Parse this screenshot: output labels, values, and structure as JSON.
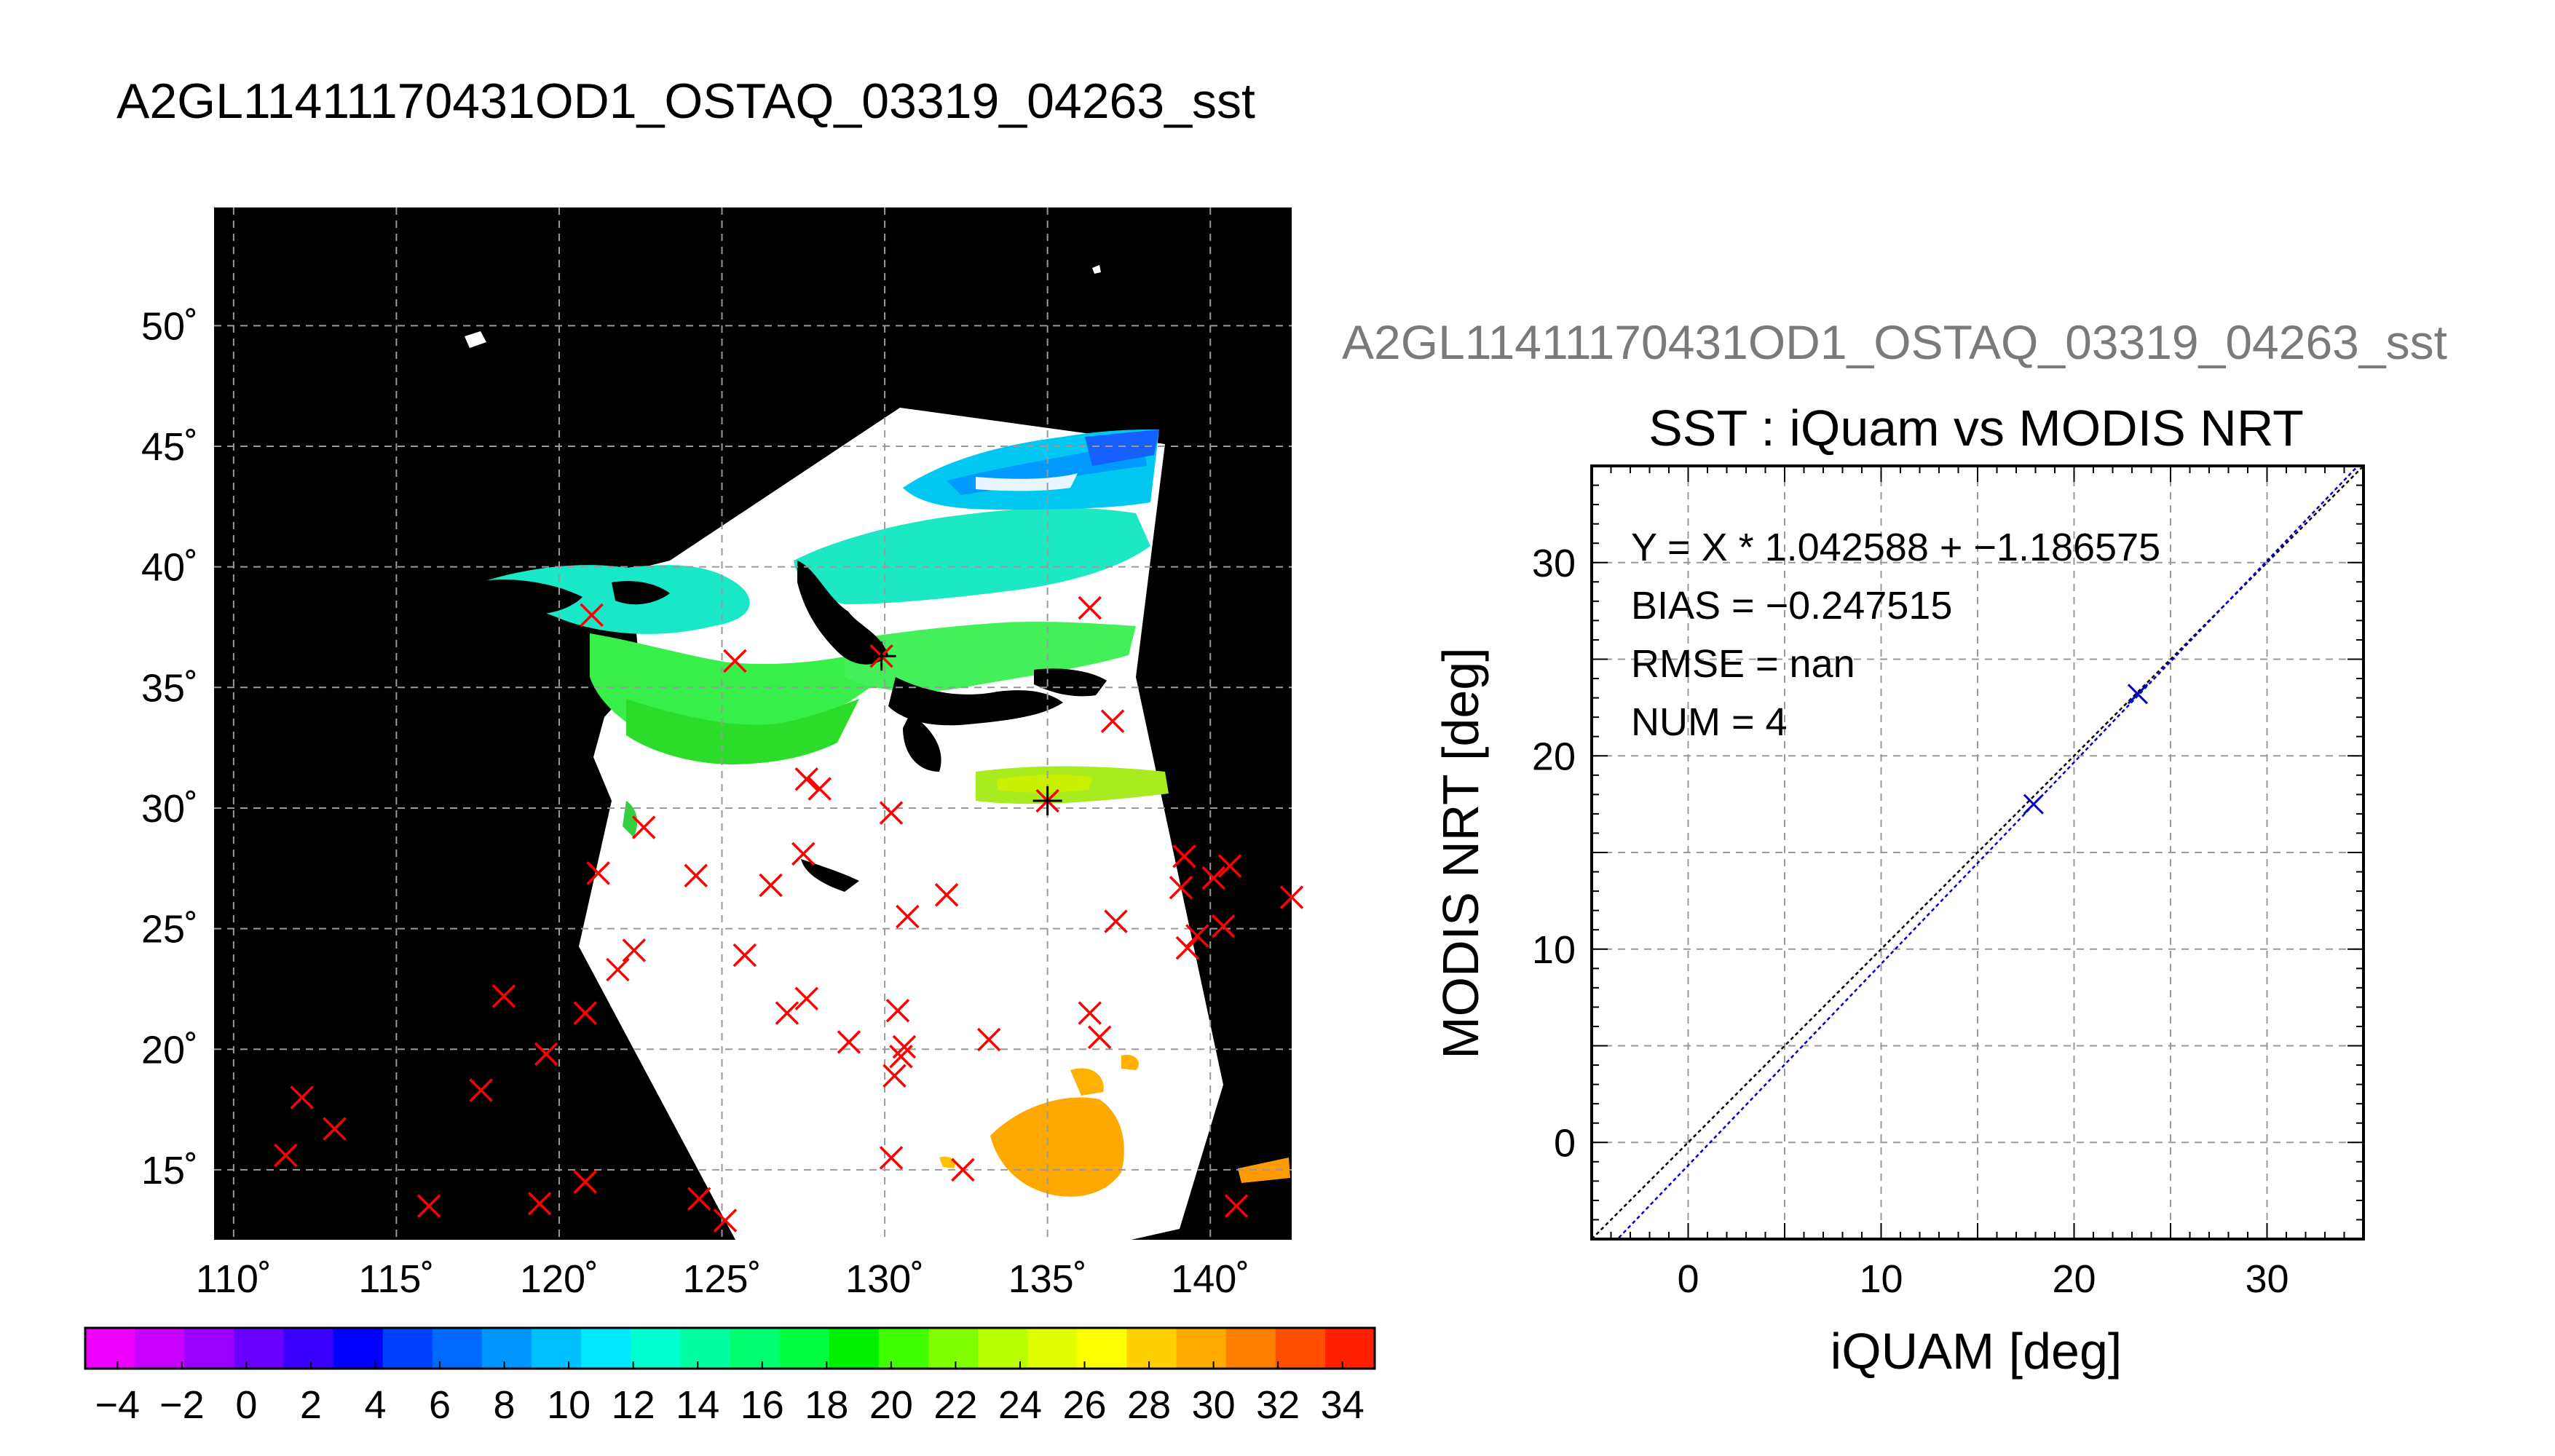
{
  "page_title": "A2GL11411170431OD1_OSTAQ_03319_04263_sst",
  "scatter_subtitle": "A2GL11411170431OD1_OSTAQ_03319_04263_sst",
  "colors": {
    "marker_red": "#ff0000",
    "marker_blue": "#0000cc",
    "fit_line": "#0000cc",
    "identity_line": "#000000",
    "map_background": "#000000",
    "no_data_swath": "#ffffff"
  },
  "chart_data": [
    {
      "type": "heatmap",
      "title": "",
      "lon_ticks": [
        110,
        115,
        120,
        125,
        130,
        135,
        140
      ],
      "lat_ticks": [
        15,
        20,
        25,
        30,
        35,
        40,
        45,
        50
      ],
      "lon_tick_labels": [
        "110˚",
        "115˚",
        "120˚",
        "125˚",
        "130˚",
        "135˚",
        "140˚"
      ],
      "lat_tick_labels": [
        "15˚",
        "20˚",
        "25˚",
        "30˚",
        "35˚",
        "40˚",
        "45˚",
        "50˚"
      ],
      "xlim": [
        109.4,
        142.5
      ],
      "ylim": [
        12.1,
        54.9
      ],
      "grid": true,
      "colorbar": {
        "min": -5,
        "max": 35,
        "tick_values": [
          -4,
          -2,
          0,
          2,
          4,
          6,
          8,
          10,
          12,
          14,
          16,
          18,
          20,
          22,
          24,
          26,
          28,
          30,
          32,
          34
        ],
        "tick_labels": [
          "−4",
          "−2",
          "0",
          "2",
          "4",
          "6",
          "8",
          "10",
          "12",
          "14",
          "16",
          "18",
          "20",
          "22",
          "24",
          "26",
          "28",
          "30",
          "32",
          "34"
        ],
        "colors": [
          "#ee00ff",
          "#c800ff",
          "#9a00ff",
          "#6a00ff",
          "#3a00ff",
          "#0000ff",
          "#0040ff",
          "#006aff",
          "#0096ff",
          "#00c0ff",
          "#00e8ff",
          "#00ffd0",
          "#00ffa0",
          "#00ff70",
          "#00ff40",
          "#00f000",
          "#40ff00",
          "#80ff00",
          "#b8ff00",
          "#e0ff00",
          "#ffff00",
          "#ffd000",
          "#ffaa00",
          "#ff8000",
          "#ff5000",
          "#ff2000"
        ]
      },
      "matchup_points": [
        {
          "lon": 111.6,
          "lat": 15.6
        },
        {
          "lon": 112.1,
          "lat": 18.0
        },
        {
          "lon": 113.1,
          "lat": 16.7
        },
        {
          "lon": 116.0,
          "lat": 13.5
        },
        {
          "lon": 117.6,
          "lat": 18.3
        },
        {
          "lon": 118.3,
          "lat": 22.2
        },
        {
          "lon": 119.4,
          "lat": 13.6
        },
        {
          "lon": 119.6,
          "lat": 19.8
        },
        {
          "lon": 120.8,
          "lat": 14.5
        },
        {
          "lon": 120.8,
          "lat": 21.5
        },
        {
          "lon": 121.0,
          "lat": 38.0
        },
        {
          "lon": 121.2,
          "lat": 27.3
        },
        {
          "lon": 121.8,
          "lat": 23.3
        },
        {
          "lon": 122.3,
          "lat": 24.1
        },
        {
          "lon": 122.6,
          "lat": 29.2
        },
        {
          "lon": 124.2,
          "lat": 27.2
        },
        {
          "lon": 124.3,
          "lat": 13.8
        },
        {
          "lon": 125.1,
          "lat": 12.9
        },
        {
          "lon": 125.4,
          "lat": 36.1
        },
        {
          "lon": 125.7,
          "lat": 23.9
        },
        {
          "lon": 126.5,
          "lat": 26.8
        },
        {
          "lon": 127.0,
          "lat": 21.5
        },
        {
          "lon": 127.6,
          "lat": 22.1
        },
        {
          "lon": 127.6,
          "lat": 31.2
        },
        {
          "lon": 128.0,
          "lat": 30.8
        },
        {
          "lon": 127.5,
          "lat": 28.1
        },
        {
          "lon": 128.9,
          "lat": 20.3
        },
        {
          "lon": 129.9,
          "lat": 36.3
        },
        {
          "lon": 130.2,
          "lat": 29.8
        },
        {
          "lon": 130.2,
          "lat": 15.5
        },
        {
          "lon": 130.3,
          "lat": 18.9
        },
        {
          "lon": 130.4,
          "lat": 21.6
        },
        {
          "lon": 130.5,
          "lat": 19.7
        },
        {
          "lon": 130.6,
          "lat": 20.1
        },
        {
          "lon": 130.7,
          "lat": 25.5
        },
        {
          "lon": 131.9,
          "lat": 26.4
        },
        {
          "lon": 132.4,
          "lat": 15.0
        },
        {
          "lon": 133.2,
          "lat": 20.4
        },
        {
          "lon": 135.0,
          "lat": 30.3
        },
        {
          "lon": 136.3,
          "lat": 38.3
        },
        {
          "lon": 136.3,
          "lat": 21.5
        },
        {
          "lon": 136.6,
          "lat": 20.5
        },
        {
          "lon": 137.0,
          "lat": 33.6
        },
        {
          "lon": 137.1,
          "lat": 25.3
        },
        {
          "lon": 139.1,
          "lat": 26.7
        },
        {
          "lon": 139.2,
          "lat": 28.0
        },
        {
          "lon": 139.3,
          "lat": 24.2
        },
        {
          "lon": 139.6,
          "lat": 24.7
        },
        {
          "lon": 140.1,
          "lat": 27.1
        },
        {
          "lon": 140.4,
          "lat": 25.1
        },
        {
          "lon": 140.6,
          "lat": 27.6
        },
        {
          "lon": 140.8,
          "lat": 13.5
        },
        {
          "lon": 142.5,
          "lat": 26.3
        }
      ],
      "highlighted_points": [
        {
          "lon": 129.9,
          "lat": 36.3
        },
        {
          "lon": 135.0,
          "lat": 30.3
        }
      ]
    },
    {
      "type": "scatter",
      "title": "SST : iQuam vs MODIS NRT",
      "xlabel": "iQUAM [deg]",
      "ylabel": "MODIS NRT [deg]",
      "xlim": [
        -5,
        35
      ],
      "ylim": [
        -5,
        35
      ],
      "x_ticks": [
        0,
        10,
        20,
        30
      ],
      "y_ticks": [
        0,
        10,
        20,
        30
      ],
      "minor_ticks": [
        -5,
        5,
        15,
        25
      ],
      "grid": true,
      "annotations": [
        "Y = X * 1.042588 + −1.186575",
        "BIAS = −0.247515",
        "RMSE = nan",
        "NUM = 4"
      ],
      "fit": {
        "slope": 1.042588,
        "intercept": -1.186575
      },
      "points": [
        {
          "x": 17.9,
          "y": 17.5
        },
        {
          "x": 23.3,
          "y": 23.2
        }
      ]
    }
  ]
}
